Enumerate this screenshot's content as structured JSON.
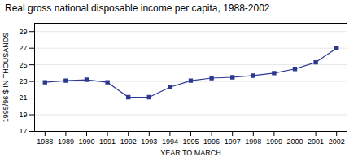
{
  "chart_data": {
    "type": "line",
    "title": "Real gross national disposable income per capita, 1988-2002",
    "xlabel": "YEAR TO MARCH",
    "ylabel": "1995/96 $ IN THOUSANDS",
    "x": [
      1988,
      1989,
      1990,
      1991,
      1992,
      1993,
      1994,
      1995,
      1996,
      1997,
      1998,
      1999,
      2000,
      2001,
      2002
    ],
    "values": [
      22.9,
      23.1,
      23.2,
      22.9,
      21.1,
      21.1,
      22.3,
      23.1,
      23.4,
      23.5,
      23.7,
      24.0,
      24.5,
      25.3,
      27.0
    ],
    "xlim": [
      1987.5,
      2002.5
    ],
    "xticks": [
      1988,
      1989,
      1990,
      1991,
      1992,
      1993,
      1994,
      1995,
      1996,
      1997,
      1998,
      1999,
      2000,
      2001,
      2002
    ],
    "ylim": [
      17,
      30
    ],
    "yticks": [
      17,
      19,
      21,
      23,
      25,
      27,
      29
    ],
    "color": "#2b3990",
    "marker": "square",
    "grid": true
  }
}
